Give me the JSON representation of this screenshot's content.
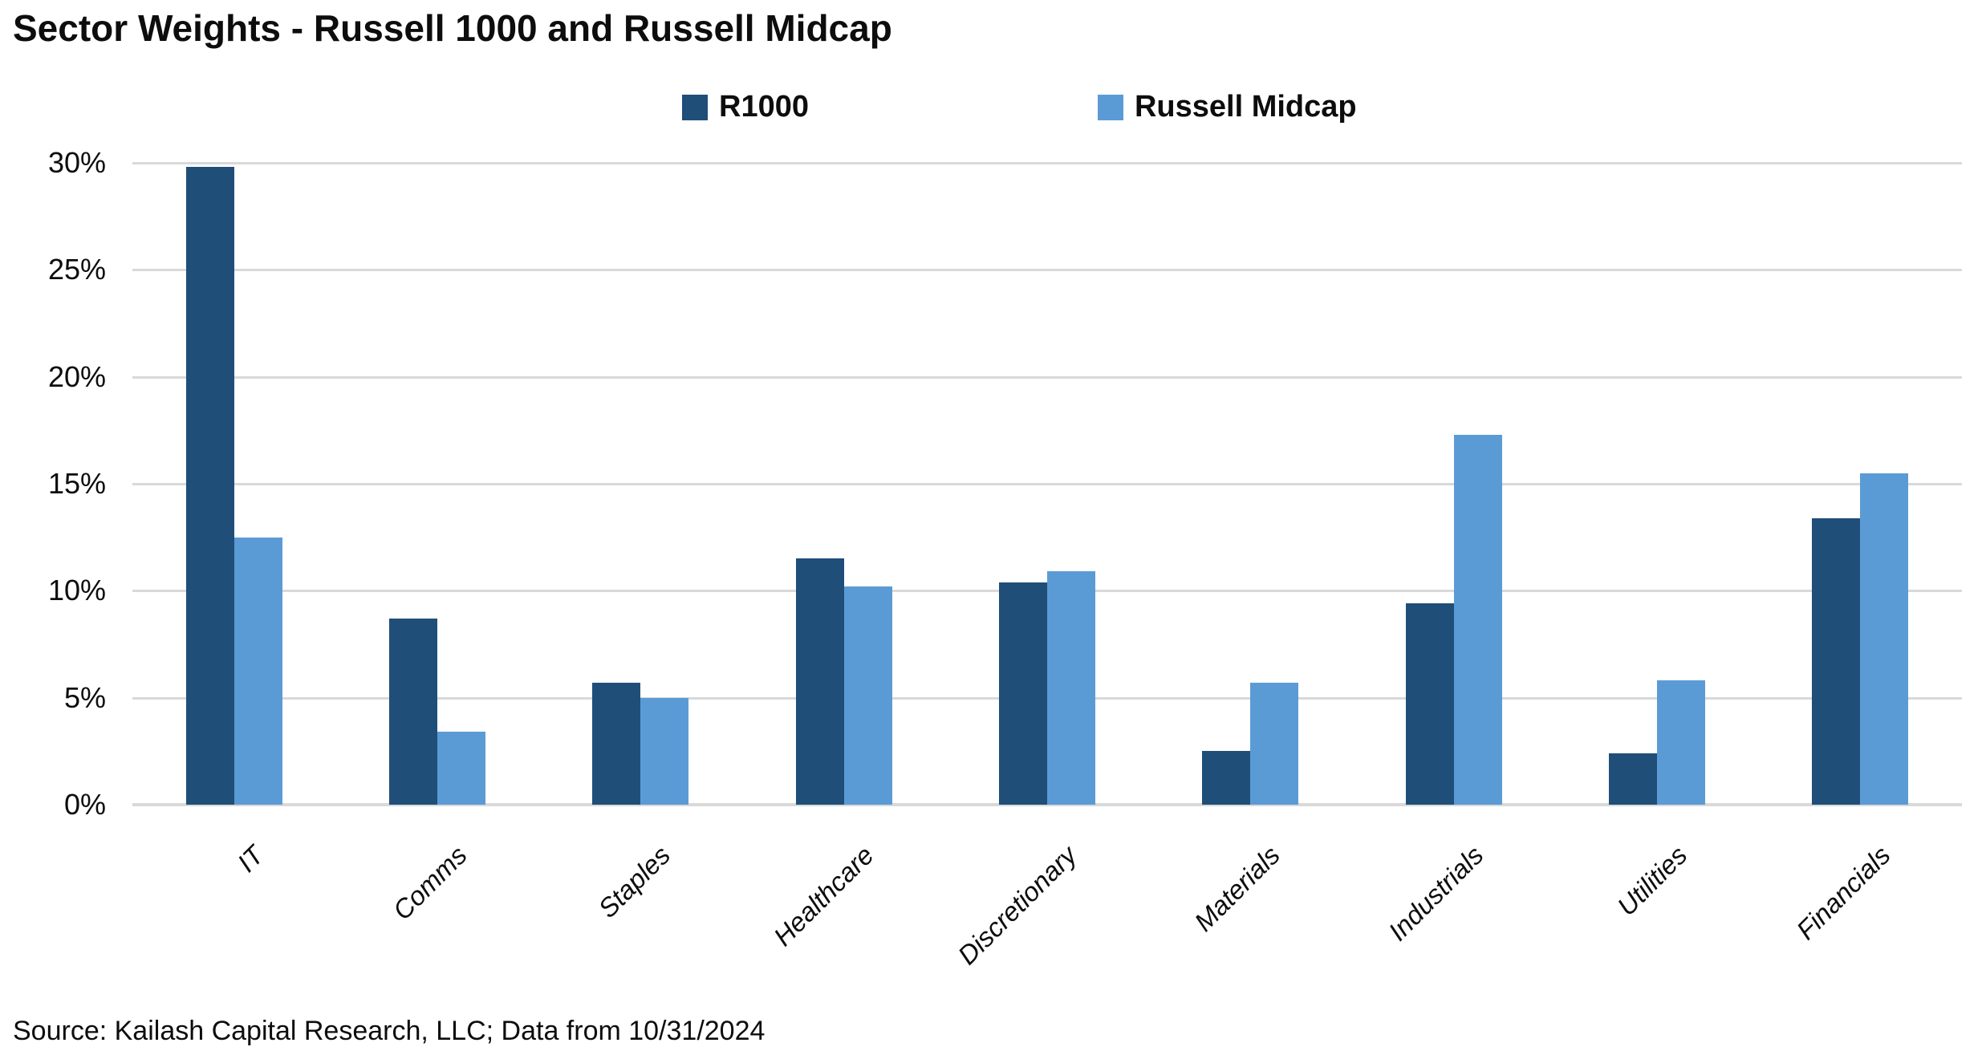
{
  "title": "Sector Weights - Russell 1000 and Russell Midcap",
  "source_note": "Source: Kailash Capital Research, LLC; Data from 10/31/2024",
  "legend": {
    "position": "top-center",
    "items": [
      {
        "label": "R1000",
        "color": "#1F4E79"
      },
      {
        "label": "Russell Midcap",
        "color": "#5B9BD5"
      }
    ]
  },
  "chart_data": {
    "type": "bar",
    "title": "Sector Weights - Russell 1000 and Russell Midcap",
    "categories": [
      "IT",
      "Comms",
      "Staples",
      "Healthcare",
      "Discretionary",
      "Materials",
      "Industrials",
      "Utilities",
      "Financials"
    ],
    "series": [
      {
        "name": "R1000",
        "color": "#1F4E79",
        "values": [
          29.8,
          8.7,
          5.7,
          11.5,
          10.4,
          2.5,
          9.4,
          2.4,
          13.4
        ]
      },
      {
        "name": "Russell Midcap",
        "color": "#5B9BD5",
        "values": [
          12.5,
          3.4,
          5.0,
          10.2,
          10.9,
          5.7,
          17.3,
          5.8,
          15.5
        ]
      }
    ],
    "xlabel": "",
    "ylabel": "",
    "ylim": [
      0,
      30
    ],
    "ytick_step": 5,
    "ytick_labels": [
      "0%",
      "5%",
      "10%",
      "15%",
      "20%",
      "25%",
      "30%"
    ],
    "grid": true,
    "gridline_color": "#d9d9d9",
    "legend_position": "top-center"
  }
}
